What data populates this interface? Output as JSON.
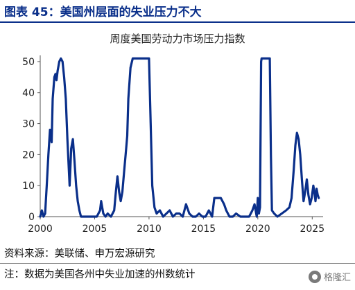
{
  "figure_title": "图表 45：美国州层面的失业压力不大",
  "source": "资料来源：美联储、申万宏源研究",
  "note": "注：数据为美国各州中失业加速的州数统计",
  "watermark": "格隆汇",
  "colors": {
    "series": "#0a2f8a",
    "heading": "#0a2f8a"
  },
  "chart_data": {
    "type": "line",
    "title": "周度美国劳动力市场压力指数",
    "xlabel": "",
    "ylabel": "",
    "xlim": [
      2000,
      2026
    ],
    "ylim": [
      0,
      52
    ],
    "xticks": [
      2000,
      2005,
      2010,
      2015,
      2020,
      2025
    ],
    "yticks": [
      0,
      10,
      20,
      30,
      40,
      50
    ],
    "grid": false,
    "legend": "none",
    "series": [
      {
        "x": [
          2000.0,
          2000.15,
          2000.3,
          2000.45,
          2000.6,
          2000.75,
          2000.9,
          2001.05,
          2001.15,
          2001.3,
          2001.4,
          2001.5,
          2001.6,
          2001.75,
          2001.9,
          2002.05,
          2002.2,
          2002.35,
          2002.5,
          2002.7,
          2002.85,
          2003.0,
          2003.15,
          2003.3,
          2003.45,
          2003.6,
          2003.75,
          2003.9,
          2004.05,
          2004.2,
          2004.35,
          2004.6,
          2004.9,
          2005.2,
          2005.5,
          2005.6,
          2005.7,
          2005.8,
          2006.0,
          2006.2,
          2006.5,
          2006.8,
          2006.95,
          2007.1,
          2007.25,
          2007.4,
          2007.55,
          2007.7,
          2007.85,
          2008.0,
          2008.1,
          2008.3,
          2008.5,
          2008.7,
          2008.9,
          2009.2,
          2009.5,
          2009.8,
          2010.0,
          2010.15,
          2010.3,
          2010.5,
          2010.7,
          2011.0,
          2011.3,
          2011.6,
          2011.9,
          2012.2,
          2012.5,
          2012.8,
          2013.1,
          2013.4,
          2013.7,
          2014.0,
          2014.3,
          2014.6,
          2014.9,
          2015.2,
          2015.5,
          2015.8,
          2016.0,
          2016.3,
          2016.6,
          2016.9,
          2017.1,
          2017.4,
          2017.7,
          2018.0,
          2018.4,
          2018.8,
          2019.2,
          2019.5,
          2019.7,
          2019.9,
          2020.0,
          2020.1,
          2020.2,
          2020.3,
          2020.35,
          2020.4,
          2021.0,
          2021.1,
          2021.2,
          2021.3,
          2021.5,
          2021.8,
          2022.2,
          2022.6,
          2022.9,
          2023.1,
          2023.3,
          2023.45,
          2023.6,
          2023.75,
          2023.9,
          2024.05,
          2024.2,
          2024.35,
          2024.5,
          2024.65,
          2024.8,
          2024.95,
          2025.1,
          2025.2,
          2025.3,
          2025.4,
          2025.5,
          2025.6
        ],
        "values": [
          0,
          2,
          0,
          1,
          10,
          20,
          28,
          24,
          38,
          45,
          46,
          44,
          47,
          50,
          51,
          50,
          45,
          38,
          25,
          10,
          22,
          25,
          18,
          10,
          5,
          2,
          0,
          0,
          0,
          0,
          0,
          0,
          0,
          0,
          2,
          5,
          3,
          1,
          0,
          1,
          0,
          2,
          8,
          13,
          8,
          5,
          8,
          14,
          20,
          26,
          38,
          48,
          51,
          51,
          51,
          51,
          51,
          51,
          51,
          30,
          10,
          3,
          1,
          2,
          0,
          1,
          2,
          0,
          1,
          1,
          0,
          4,
          1,
          0,
          0,
          1,
          0,
          0,
          2,
          0,
          6,
          6,
          6,
          4,
          2,
          0,
          0,
          1,
          0,
          0,
          0,
          2,
          4,
          0,
          6,
          1,
          3,
          50,
          51,
          51,
          51,
          51,
          20,
          2,
          1,
          0,
          1,
          2,
          3,
          6,
          15,
          23,
          27,
          25,
          20,
          12,
          5,
          8,
          12,
          7,
          4,
          6,
          10,
          8,
          5,
          9,
          7,
          6
        ]
      }
    ]
  }
}
